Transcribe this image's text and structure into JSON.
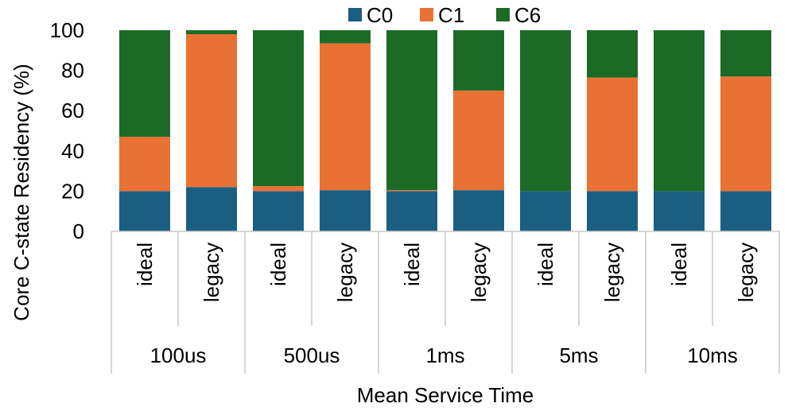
{
  "chart_data": {
    "type": "bar",
    "stacked": true,
    "ylabel": "Core C-state Residency (%)",
    "xlabel": "Mean Service Time",
    "ylim": [
      0,
      100
    ],
    "yticks": [
      "0",
      "20",
      "40",
      "60",
      "80",
      "100"
    ],
    "grid": false,
    "legend_position": "top",
    "groups": [
      "100us",
      "500us",
      "1ms",
      "5ms",
      "10ms"
    ],
    "subcategories": [
      "ideal",
      "legacy"
    ],
    "categories": [
      "ideal",
      "legacy",
      "ideal",
      "legacy",
      "ideal",
      "legacy",
      "ideal",
      "legacy",
      "ideal",
      "legacy"
    ],
    "series": [
      {
        "name": "C0",
        "color": "#1a5f82",
        "values": [
          20,
          22,
          20,
          20.5,
          20,
          20.5,
          20,
          20,
          20,
          20
        ]
      },
      {
        "name": "C1",
        "color": "#ea7134",
        "values": [
          27,
          76,
          2.5,
          73,
          0.5,
          49.5,
          0,
          56.5,
          0,
          57
        ]
      },
      {
        "name": "C6",
        "color": "#1b6b27",
        "values": [
          53,
          2,
          77.5,
          6.5,
          79.5,
          30,
          80,
          23.5,
          80,
          23
        ]
      }
    ]
  }
}
